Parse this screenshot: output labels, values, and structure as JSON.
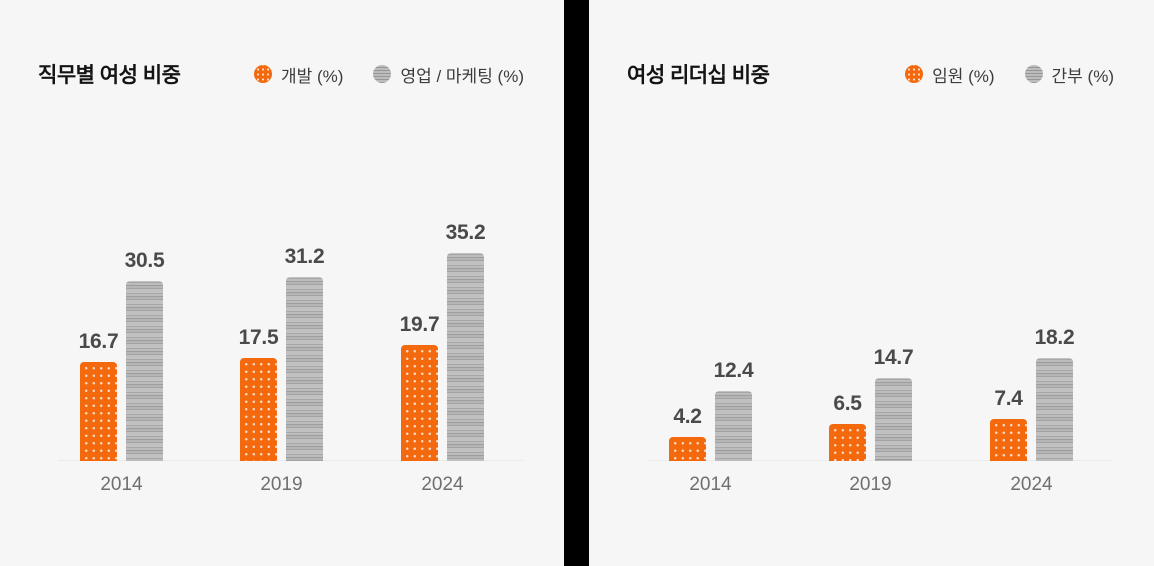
{
  "page": {
    "background_color": "#f6f6f6",
    "divider_color": "#000000"
  },
  "colors": {
    "accent_orange": "#f4690d",
    "bar_gray": "#b7b7b7",
    "value_label_text": "#4a4a4a",
    "axis_label_text": "#6f6f6f",
    "title_text": "#141414"
  },
  "chart_data": [
    {
      "type": "bar",
      "title": "직무별 여성 비중",
      "categories": [
        "2014",
        "2019",
        "2024"
      ],
      "series": [
        {
          "name": "개발 (%)",
          "style": "orange-dotted",
          "values": [
            16.7,
            17.5,
            19.7
          ]
        },
        {
          "name": "영업 / 마케팅 (%)",
          "style": "gray-striped",
          "values": [
            30.5,
            31.2,
            35.2
          ]
        }
      ],
      "legend": [
        {
          "label": "개발 (%)",
          "swatch": "orange-dotted-circle"
        },
        {
          "label": "영업 / 마케팅 (%)",
          "swatch": "gray-striped-circle"
        }
      ],
      "legend_position": "top-right",
      "value_labels": true,
      "grid": false,
      "ylim": [
        0,
        40
      ],
      "unit": "%"
    },
    {
      "type": "bar",
      "title": "여성 리더십 비중",
      "categories": [
        "2014",
        "2019",
        "2024"
      ],
      "series": [
        {
          "name": "임원 (%)",
          "style": "orange-dotted",
          "values": [
            4.2,
            6.5,
            7.4
          ]
        },
        {
          "name": "간부 (%)",
          "style": "gray-striped",
          "values": [
            12.4,
            14.7,
            18.2
          ]
        }
      ],
      "legend": [
        {
          "label": "임원 (%)",
          "swatch": "orange-dotted-circle"
        },
        {
          "label": "간부 (%)",
          "swatch": "gray-striped-circle"
        }
      ],
      "legend_position": "top-right",
      "value_labels": true,
      "grid": false,
      "ylim": [
        0,
        20
      ],
      "unit": "%"
    }
  ]
}
